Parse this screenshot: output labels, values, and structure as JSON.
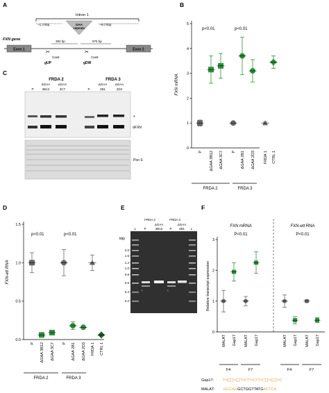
{
  "figure": {
    "colors": {
      "green": "#2f8f3a",
      "dark_green": "#1f5f28",
      "gray": "#666666",
      "light_gray": "#bbbbbb",
      "orange": "#e6a23c",
      "blue": "#2255cc"
    },
    "panels": {
      "A": {
        "label": "A",
        "intron_label": "Intron 1",
        "left_dist": "~1.3 kbp",
        "right_dist": "~9.0 kbp",
        "repeats_label_1": "GAA",
        "repeats_label_2": "repeats",
        "dist_392": "392 bp",
        "dist_976": "976 bp",
        "gene_label": "FXN gene",
        "exon1": "Exon 1",
        "exon2": "Exon 2",
        "cas9_1": "Cas9",
        "cas9_2": "Cas9",
        "gup": "gUP",
        "gdw": "gDW"
      },
      "B": {
        "label": "B",
        "ylabel": "FXN mRNA",
        "pval_1": "p<0.01",
        "pval_2": "p<0.01",
        "group_1": "FRDA 2",
        "group_2": "FRDA 3"
      },
      "C": {
        "label": "C",
        "frda2": "FRDA 2",
        "frda3": "FRDA 3",
        "dgaa_1": "ΔGAA",
        "dgaa_2": "ΔGAA",
        "dgaa_3": "ΔGAA",
        "dgaa_4": "ΔGAA",
        "lane_p1": "P",
        "lane_3b12": "3B12",
        "lane_3c7": "3C7",
        "lane_p2": "P",
        "lane_2b1": "2B1",
        "lane_2d3": "2D3",
        "star": "*",
        "afxn": "αFXN",
        "pons": "Pon S"
      },
      "D": {
        "label": "D",
        "ylabel_pre": "FXN-",
        "ylabel_post": "ett RNA",
        "pval_1": "p<0.01",
        "pval_2": "p<0.01",
        "group_1": "FRDA 2",
        "group_2": "FRDA 3"
      },
      "E": {
        "label": "E",
        "frda2": "FRDA 2",
        "frda3": "FRDA 3",
        "kbp": "kbp",
        "dgaa_1": "ΔGAA",
        "dgaa_2": "ΔGAA",
        "lane_L1": "L",
        "lane_P1": "P",
        "lane_3b12": "3B12",
        "lane_P2": "P",
        "lane_2b1": "2B1",
        "lane_L2": "L",
        "ladder": [
          "2.0",
          "1.5",
          "1.2",
          "1.0",
          "0.8",
          "0.6",
          "0.4",
          "0.2"
        ]
      },
      "F": {
        "label": "F",
        "title_1a": "FXN",
        "title_1b": " mRNA",
        "title_2a": "FXN-ett",
        "title_2b": " RNA",
        "pval_1": "P<0.01",
        "pval_2": "P<0.01",
        "ylabel": "Relative transcript expression",
        "x_labels": [
          "MALAT",
          "Gap17",
          "MALAT",
          "Gap17",
          "MALAT",
          "Gap17",
          "MALAT",
          "Gap17"
        ],
        "f4_a": "F4",
        "f7_a": "F7",
        "f4_b": "F4",
        "f7_b": "F7",
        "gap17_label": "Gap17:",
        "gap17_seq": "TᵐC̲T̲T̲ᵐC̲T̲TᵐCTTᵐCTTᵐCT̲T̲ᵐC̲T̲T̲ᵐC",
        "malat_label": "MALAT:",
        "malat_seq_1": "GCCAG",
        "malat_seq_2": "GCTGGTTATG",
        "malat_seq_3": "ACTCA"
      }
    }
  },
  "chart_data": [
    {
      "panel": "B",
      "type": "scatter",
      "ylabel": "FXN mRNA",
      "ylim": [
        0,
        5
      ],
      "yticks": [
        0,
        1,
        2,
        3,
        4,
        5
      ],
      "categories": [
        "P",
        "ΔGAA 3B12",
        "ΔGAA 3C7",
        "P",
        "ΔGAA 2B1",
        "ΔGAA 2D3",
        "FRDA 1",
        "CTRL 1"
      ],
      "groups": [
        "FRDA 2",
        "FRDA 3"
      ],
      "values": [
        1.0,
        3.15,
        3.3,
        1.0,
        3.7,
        3.1,
        1.0,
        3.45
      ],
      "err": [
        0.12,
        0.55,
        0.5,
        0.05,
        0.75,
        0.45,
        0.05,
        0.25
      ],
      "annotations": [
        "p<0.01",
        "p<0.01"
      ]
    },
    {
      "panel": "D",
      "type": "scatter",
      "ylabel": "FXN-ett RNA",
      "ylim": [
        0,
        1.5
      ],
      "yticks": [
        0,
        0.5,
        1.0,
        1.5
      ],
      "categories": [
        "P",
        "ΔGAA 3B12",
        "ΔGAA 3C7",
        "P",
        "ΔGAA 2B1",
        "ΔGAA 2D3",
        "FRDA 1",
        "CTRL 1"
      ],
      "groups": [
        "FRDA 2",
        "FRDA 3"
      ],
      "values": [
        1.0,
        0.06,
        0.09,
        1.0,
        0.18,
        0.16,
        1.0,
        0.06
      ],
      "err": [
        0.13,
        0.02,
        0.02,
        0.17,
        0.05,
        0.02,
        0.1,
        0.01
      ],
      "annotations": [
        "p<0.01",
        "p<0.01"
      ]
    },
    {
      "panel": "F",
      "type": "scatter",
      "ylabel": "Relative transcript expression",
      "ylim": [
        0,
        3
      ],
      "yticks": [
        0,
        1,
        2,
        3
      ],
      "categories": [
        "MALAT",
        "Gap17",
        "MALAT",
        "Gap17",
        "MALAT",
        "Gap17",
        "MALAT",
        "Gap17"
      ],
      "groups": [
        "F4",
        "F7",
        "F4",
        "F7"
      ],
      "values": [
        1.0,
        1.95,
        1.0,
        2.25,
        1.0,
        0.38,
        1.0,
        0.38
      ],
      "err": [
        0.35,
        0.3,
        0.15,
        0.35,
        0.2,
        0.12,
        0.05,
        0.08
      ],
      "annotations": [
        "P<0.01",
        "P<0.01"
      ]
    }
  ]
}
